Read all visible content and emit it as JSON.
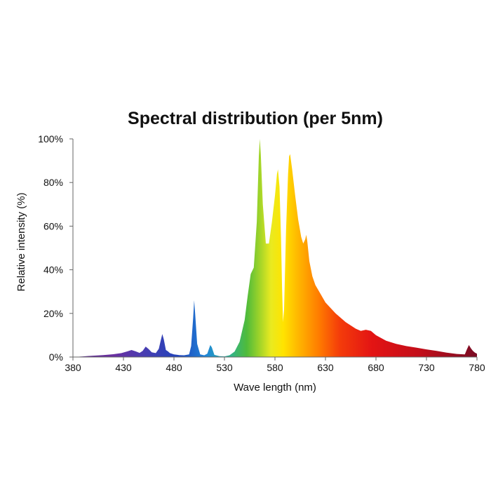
{
  "chart_data": {
    "type": "area",
    "title": "Spectral distribution (per 5nm)",
    "xlabel": "Wave length (nm)",
    "ylabel": "Relative intensity (%)",
    "xlim": [
      380,
      780
    ],
    "ylim": [
      0,
      100
    ],
    "x_ticks": [
      "380",
      "430",
      "480",
      "530",
      "580",
      "630",
      "680",
      "730",
      "780"
    ],
    "y_ticks": [
      "0%",
      "20%",
      "40%",
      "60%",
      "80%",
      "100%"
    ],
    "grid": false,
    "legend": "none",
    "series": [
      {
        "name": "Relative intensity",
        "points": [
          [
            380,
            0
          ],
          [
            390,
            0.3
          ],
          [
            400,
            0.6
          ],
          [
            410,
            0.9
          ],
          [
            420,
            1.3
          ],
          [
            428,
            1.8
          ],
          [
            434,
            2.6
          ],
          [
            438,
            3.2
          ],
          [
            442,
            2.6
          ],
          [
            446,
            1.9
          ],
          [
            449,
            2.8
          ],
          [
            452,
            4.8
          ],
          [
            455,
            3.6
          ],
          [
            458,
            2.2
          ],
          [
            462,
            1.8
          ],
          [
            465,
            3.8
          ],
          [
            467,
            7.8
          ],
          [
            468.5,
            10.5
          ],
          [
            470,
            8
          ],
          [
            472,
            3.2
          ],
          [
            474,
            2.6
          ],
          [
            476,
            1.8
          ],
          [
            480,
            1.2
          ],
          [
            485,
            0.9
          ],
          [
            490,
            0.8
          ],
          [
            495,
            1.2
          ],
          [
            497,
            5
          ],
          [
            499,
            18
          ],
          [
            500,
            26
          ],
          [
            501,
            20
          ],
          [
            503,
            6
          ],
          [
            506,
            1.2
          ],
          [
            510,
            0.8
          ],
          [
            513,
            1.5
          ],
          [
            515,
            4.2
          ],
          [
            516,
            5.5
          ],
          [
            517.5,
            4.4
          ],
          [
            520,
            1
          ],
          [
            525,
            0.4
          ],
          [
            530,
            0.3
          ],
          [
            535,
            0.8
          ],
          [
            540,
            2.5
          ],
          [
            545,
            7
          ],
          [
            550,
            17
          ],
          [
            553,
            28
          ],
          [
            556,
            38
          ],
          [
            559,
            41
          ],
          [
            562,
            62
          ],
          [
            564,
            92
          ],
          [
            565,
            100
          ],
          [
            566,
            93
          ],
          [
            568,
            70
          ],
          [
            571,
            52
          ],
          [
            574,
            52
          ],
          [
            577,
            62
          ],
          [
            580,
            74
          ],
          [
            582,
            84
          ],
          [
            583,
            86
          ],
          [
            584.5,
            78
          ],
          [
            586,
            55
          ],
          [
            587,
            32
          ],
          [
            588,
            16
          ],
          [
            589,
            22
          ],
          [
            591,
            58
          ],
          [
            593,
            84
          ],
          [
            594,
            92
          ],
          [
            595,
            93
          ],
          [
            597,
            86
          ],
          [
            600,
            74
          ],
          [
            603,
            63
          ],
          [
            606,
            55
          ],
          [
            608,
            52
          ],
          [
            610,
            54
          ],
          [
            611,
            56
          ],
          [
            612,
            53
          ],
          [
            614,
            44
          ],
          [
            617,
            37
          ],
          [
            620,
            33
          ],
          [
            625,
            29
          ],
          [
            630,
            25
          ],
          [
            640,
            20
          ],
          [
            650,
            16
          ],
          [
            660,
            13
          ],
          [
            665,
            12
          ],
          [
            670,
            12.5
          ],
          [
            675,
            12
          ],
          [
            680,
            10
          ],
          [
            690,
            7.5
          ],
          [
            700,
            6
          ],
          [
            710,
            5
          ],
          [
            720,
            4.3
          ],
          [
            730,
            3.5
          ],
          [
            740,
            2.8
          ],
          [
            750,
            2
          ],
          [
            760,
            1.4
          ],
          [
            768,
            1.2
          ],
          [
            770,
            3.5
          ],
          [
            772,
            5.5
          ],
          [
            774,
            4
          ],
          [
            776,
            2.8
          ],
          [
            778,
            2
          ],
          [
            780,
            1.5
          ]
        ]
      }
    ]
  }
}
